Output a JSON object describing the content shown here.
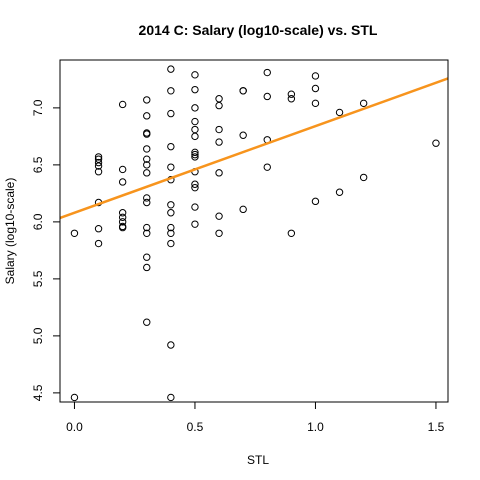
{
  "chart_data": {
    "type": "scatter",
    "title": "2014 C: Salary (log10-scale) vs. STL",
    "xlabel": "STL",
    "ylabel": "Salary (log10-scale)",
    "xlim": [
      -0.06,
      1.55
    ],
    "ylim": [
      4.42,
      7.42
    ],
    "x_ticks": [
      0.0,
      0.5,
      1.0,
      1.5
    ],
    "x_tick_labels": [
      "0.0",
      "0.5",
      "1.0",
      "1.5"
    ],
    "y_ticks": [
      4.5,
      5.0,
      5.5,
      6.0,
      6.5,
      7.0
    ],
    "y_tick_labels": [
      "4.5",
      "5.0",
      "5.5",
      "6.0",
      "6.5",
      "7.0"
    ],
    "grid": false,
    "points": [
      {
        "x": 0.0,
        "y": 4.46
      },
      {
        "x": 0.0,
        "y": 5.9
      },
      {
        "x": 0.1,
        "y": 5.81
      },
      {
        "x": 0.1,
        "y": 5.94
      },
      {
        "x": 0.1,
        "y": 6.17
      },
      {
        "x": 0.1,
        "y": 6.44
      },
      {
        "x": 0.1,
        "y": 6.49
      },
      {
        "x": 0.1,
        "y": 6.52
      },
      {
        "x": 0.1,
        "y": 6.55
      },
      {
        "x": 0.1,
        "y": 6.57
      },
      {
        "x": 0.2,
        "y": 7.03
      },
      {
        "x": 0.2,
        "y": 6.46
      },
      {
        "x": 0.2,
        "y": 6.35
      },
      {
        "x": 0.2,
        "y": 6.08
      },
      {
        "x": 0.2,
        "y": 6.04
      },
      {
        "x": 0.2,
        "y": 6.0
      },
      {
        "x": 0.2,
        "y": 5.96
      },
      {
        "x": 0.2,
        "y": 5.95
      },
      {
        "x": 0.3,
        "y": 7.07
      },
      {
        "x": 0.3,
        "y": 6.93
      },
      {
        "x": 0.3,
        "y": 6.78
      },
      {
        "x": 0.3,
        "y": 6.77
      },
      {
        "x": 0.3,
        "y": 6.64
      },
      {
        "x": 0.3,
        "y": 6.55
      },
      {
        "x": 0.3,
        "y": 6.5
      },
      {
        "x": 0.3,
        "y": 6.43
      },
      {
        "x": 0.3,
        "y": 6.21
      },
      {
        "x": 0.3,
        "y": 6.17
      },
      {
        "x": 0.3,
        "y": 5.95
      },
      {
        "x": 0.3,
        "y": 5.9
      },
      {
        "x": 0.3,
        "y": 5.69
      },
      {
        "x": 0.3,
        "y": 5.6
      },
      {
        "x": 0.3,
        "y": 5.12
      },
      {
        "x": 0.4,
        "y": 7.34
      },
      {
        "x": 0.4,
        "y": 7.15
      },
      {
        "x": 0.4,
        "y": 6.95
      },
      {
        "x": 0.4,
        "y": 6.66
      },
      {
        "x": 0.4,
        "y": 6.48
      },
      {
        "x": 0.4,
        "y": 6.37
      },
      {
        "x": 0.4,
        "y": 6.15
      },
      {
        "x": 0.4,
        "y": 6.08
      },
      {
        "x": 0.4,
        "y": 5.95
      },
      {
        "x": 0.4,
        "y": 5.9
      },
      {
        "x": 0.4,
        "y": 5.81
      },
      {
        "x": 0.4,
        "y": 4.92
      },
      {
        "x": 0.4,
        "y": 4.46
      },
      {
        "x": 0.5,
        "y": 7.29
      },
      {
        "x": 0.5,
        "y": 7.16
      },
      {
        "x": 0.5,
        "y": 7.0
      },
      {
        "x": 0.5,
        "y": 6.88
      },
      {
        "x": 0.5,
        "y": 6.81
      },
      {
        "x": 0.5,
        "y": 6.75
      },
      {
        "x": 0.5,
        "y": 6.61
      },
      {
        "x": 0.5,
        "y": 6.59
      },
      {
        "x": 0.5,
        "y": 6.57
      },
      {
        "x": 0.5,
        "y": 6.44
      },
      {
        "x": 0.5,
        "y": 6.33
      },
      {
        "x": 0.5,
        "y": 6.3
      },
      {
        "x": 0.5,
        "y": 6.13
      },
      {
        "x": 0.5,
        "y": 5.98
      },
      {
        "x": 0.6,
        "y": 7.08
      },
      {
        "x": 0.6,
        "y": 7.02
      },
      {
        "x": 0.6,
        "y": 6.81
      },
      {
        "x": 0.6,
        "y": 6.7
      },
      {
        "x": 0.6,
        "y": 6.43
      },
      {
        "x": 0.6,
        "y": 6.05
      },
      {
        "x": 0.6,
        "y": 5.9
      },
      {
        "x": 0.7,
        "y": 7.15
      },
      {
        "x": 0.7,
        "y": 7.15
      },
      {
        "x": 0.7,
        "y": 6.76
      },
      {
        "x": 0.7,
        "y": 6.11
      },
      {
        "x": 0.8,
        "y": 7.31
      },
      {
        "x": 0.8,
        "y": 7.1
      },
      {
        "x": 0.8,
        "y": 6.72
      },
      {
        "x": 0.8,
        "y": 6.48
      },
      {
        "x": 0.9,
        "y": 7.12
      },
      {
        "x": 0.9,
        "y": 7.08
      },
      {
        "x": 0.9,
        "y": 5.9
      },
      {
        "x": 1.0,
        "y": 7.28
      },
      {
        "x": 1.0,
        "y": 7.17
      },
      {
        "x": 1.0,
        "y": 7.04
      },
      {
        "x": 1.0,
        "y": 6.18
      },
      {
        "x": 1.1,
        "y": 6.96
      },
      {
        "x": 1.1,
        "y": 6.26
      },
      {
        "x": 1.2,
        "y": 7.04
      },
      {
        "x": 1.2,
        "y": 6.39
      },
      {
        "x": 1.5,
        "y": 6.69
      }
    ],
    "fit_line": {
      "intercept": 6.08,
      "slope": 0.76,
      "color": "#f7941d"
    },
    "point_color": "#000000"
  }
}
